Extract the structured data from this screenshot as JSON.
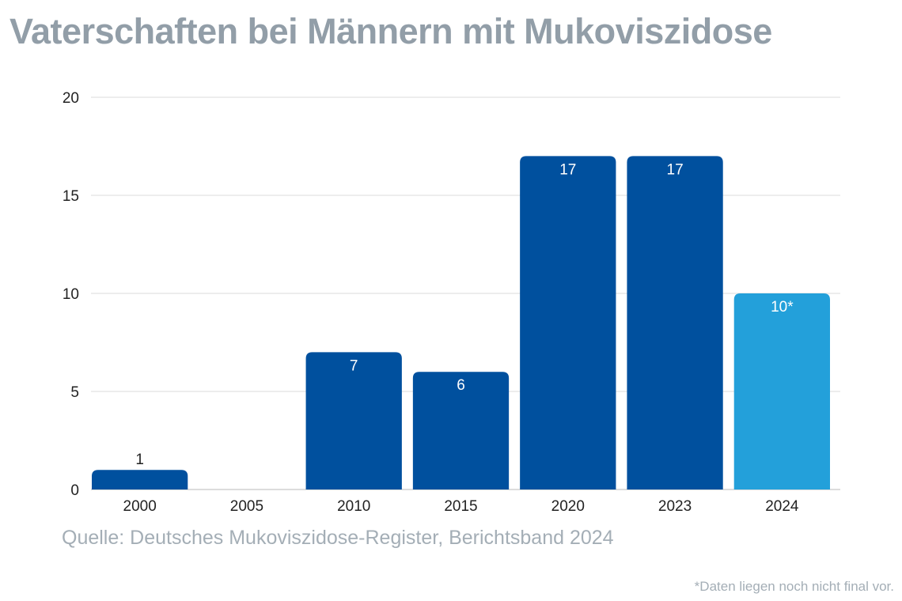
{
  "title": "Vaterschaften bei Männern mit Mukoviszidose",
  "source": "Quelle: Deutsches Mukoviszidose-Register, Berichtsband 2024",
  "footnote": "*Daten liegen noch nicht final vor.",
  "chart_data": {
    "type": "bar",
    "title": "Vaterschaften bei Männern mit Mukoviszidose",
    "categories": [
      "2000",
      "2005",
      "2010",
      "2015",
      "2020",
      "2023",
      "2024"
    ],
    "values": [
      1,
      0,
      7,
      6,
      17,
      17,
      10
    ],
    "data_labels": [
      "1",
      "",
      "7",
      "6",
      "17",
      "17",
      "10*"
    ],
    "colors": [
      "#00509e",
      "#00509e",
      "#00509e",
      "#00509e",
      "#00509e",
      "#00509e",
      "#23a0da"
    ],
    "ylim": [
      0,
      20
    ],
    "yticks": [
      0,
      5,
      10,
      15,
      20
    ],
    "grid": true,
    "xlabel": "",
    "ylabel": ""
  }
}
